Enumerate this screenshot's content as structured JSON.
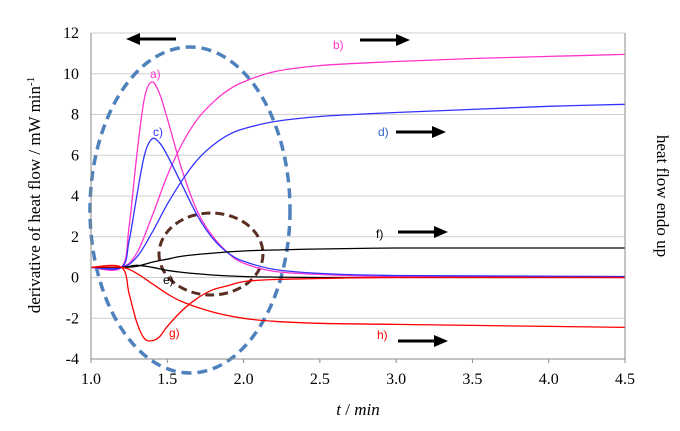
{
  "chart_data": {
    "type": "line",
    "xlabel_var": "t",
    "xlabel_sep": "/",
    "xlabel_unit": "min",
    "ylabel_left_main": "derivative of heat flow / mW min",
    "ylabel_left_sup": "-1",
    "ylabel_right": "heat flow endo up",
    "xlim": [
      1.0,
      4.5
    ],
    "ylim": [
      -4,
      12
    ],
    "x_ticks": [
      "1.0",
      "1.5",
      "2.0",
      "2.5",
      "3.0",
      "3.5",
      "4.0",
      "4.5"
    ],
    "y_ticks": [
      "12",
      "10",
      "8",
      "6",
      "4",
      "2",
      "0",
      "-2",
      "-4"
    ],
    "grid": "horizontal",
    "series": [
      {
        "name": "a)",
        "axis": "left",
        "color": "#ff33cc",
        "x": [
          1.0,
          1.2,
          1.25,
          1.3,
          1.35,
          1.4,
          1.45,
          1.5,
          1.6,
          1.7,
          1.8,
          1.9,
          2.0,
          2.2,
          2.5,
          3.0,
          4.5
        ],
        "y": [
          0.5,
          0.5,
          2.5,
          6.0,
          8.8,
          9.6,
          9.0,
          7.8,
          5.2,
          3.2,
          2.0,
          1.2,
          0.7,
          0.3,
          0.15,
          0.05,
          0.0
        ]
      },
      {
        "name": "b)",
        "axis": "right",
        "color": "#ff33cc",
        "x": [
          1.0,
          1.2,
          1.3,
          1.4,
          1.5,
          1.6,
          1.7,
          1.8,
          1.9,
          2.0,
          2.2,
          2.5,
          3.0,
          3.5,
          4.0,
          4.5
        ],
        "y": [
          0.5,
          0.5,
          1.2,
          3.0,
          5.0,
          6.6,
          7.8,
          8.6,
          9.2,
          9.6,
          10.1,
          10.4,
          10.6,
          10.75,
          10.85,
          10.95
        ]
      },
      {
        "name": "c)",
        "axis": "left",
        "color": "#3333ff",
        "x": [
          1.0,
          1.2,
          1.25,
          1.3,
          1.35,
          1.4,
          1.45,
          1.5,
          1.6,
          1.7,
          1.8,
          1.9,
          2.0,
          2.2,
          2.5,
          3.0,
          4.5
        ],
        "y": [
          0.5,
          0.5,
          1.8,
          4.0,
          6.0,
          6.8,
          6.6,
          6.0,
          4.5,
          3.0,
          1.9,
          1.2,
          0.8,
          0.4,
          0.2,
          0.1,
          0.05
        ]
      },
      {
        "name": "d)",
        "axis": "right",
        "color": "#3333ff",
        "x": [
          1.0,
          1.2,
          1.3,
          1.4,
          1.5,
          1.6,
          1.7,
          1.8,
          1.9,
          2.0,
          2.2,
          2.5,
          3.0,
          3.5,
          4.0,
          4.5
        ],
        "y": [
          0.5,
          0.5,
          1.0,
          2.2,
          3.6,
          4.8,
          5.8,
          6.5,
          7.0,
          7.3,
          7.65,
          7.9,
          8.1,
          8.25,
          8.4,
          8.5
        ]
      },
      {
        "name": "e)",
        "axis": "left",
        "color": "#000000",
        "x": [
          1.0,
          1.2,
          1.3,
          1.4,
          1.5,
          1.6,
          1.8,
          2.0,
          2.2,
          2.5,
          3.0,
          4.5
        ],
        "y": [
          0.5,
          0.5,
          0.6,
          0.5,
          0.35,
          0.25,
          0.12,
          0.05,
          0.02,
          0.0,
          0.0,
          0.0
        ]
      },
      {
        "name": "f)",
        "axis": "right",
        "color": "#000000",
        "x": [
          1.0,
          1.2,
          1.3,
          1.4,
          1.5,
          1.6,
          1.8,
          2.0,
          2.2,
          2.5,
          3.0,
          3.5,
          4.0,
          4.5
        ],
        "y": [
          0.5,
          0.5,
          0.55,
          0.75,
          0.9,
          1.05,
          1.2,
          1.3,
          1.35,
          1.4,
          1.45,
          1.45,
          1.45,
          1.45
        ]
      },
      {
        "name": "g)",
        "axis": "left",
        "color": "#ff0000",
        "x": [
          1.0,
          1.2,
          1.25,
          1.3,
          1.35,
          1.4,
          1.45,
          1.5,
          1.6,
          1.7,
          1.8,
          1.9,
          2.0,
          2.2,
          2.5,
          3.0,
          4.5
        ],
        "y": [
          0.5,
          0.5,
          -0.8,
          -2.2,
          -3.0,
          -3.1,
          -2.9,
          -2.4,
          -1.6,
          -1.0,
          -0.6,
          -0.4,
          -0.2,
          -0.1,
          -0.05,
          0.0,
          0.0
        ]
      },
      {
        "name": "h)",
        "axis": "right",
        "color": "#ff0000",
        "x": [
          1.0,
          1.2,
          1.3,
          1.4,
          1.5,
          1.6,
          1.8,
          2.0,
          2.2,
          2.5,
          3.0,
          3.5,
          4.0,
          4.5
        ],
        "y": [
          0.5,
          0.5,
          0.2,
          -0.3,
          -0.8,
          -1.2,
          -1.7,
          -2.0,
          -2.15,
          -2.25,
          -2.3,
          -2.35,
          -2.4,
          -2.45
        ]
      }
    ]
  }
}
